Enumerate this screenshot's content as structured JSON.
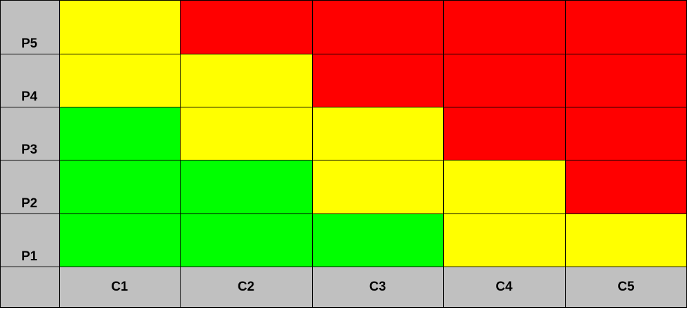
{
  "chart_data": {
    "type": "heatmap",
    "title": "",
    "xlabel": "",
    "ylabel": "",
    "x_categories": [
      "C1",
      "C2",
      "C3",
      "C4",
      "C5"
    ],
    "y_categories": [
      "P1",
      "P2",
      "P3",
      "P4",
      "P5"
    ],
    "grid": true,
    "colors": {
      "green": "#00ff00",
      "yellow": "#ffff00",
      "red": "#ff0000",
      "label_background": "#c0c0c0"
    },
    "cells": [
      [
        "green",
        "green",
        "green",
        "yellow",
        "yellow"
      ],
      [
        "green",
        "green",
        "yellow",
        "yellow",
        "red"
      ],
      [
        "green",
        "yellow",
        "yellow",
        "red",
        "red"
      ],
      [
        "yellow",
        "yellow",
        "red",
        "red",
        "red"
      ],
      [
        "yellow",
        "red",
        "red",
        "red",
        "red"
      ]
    ]
  }
}
